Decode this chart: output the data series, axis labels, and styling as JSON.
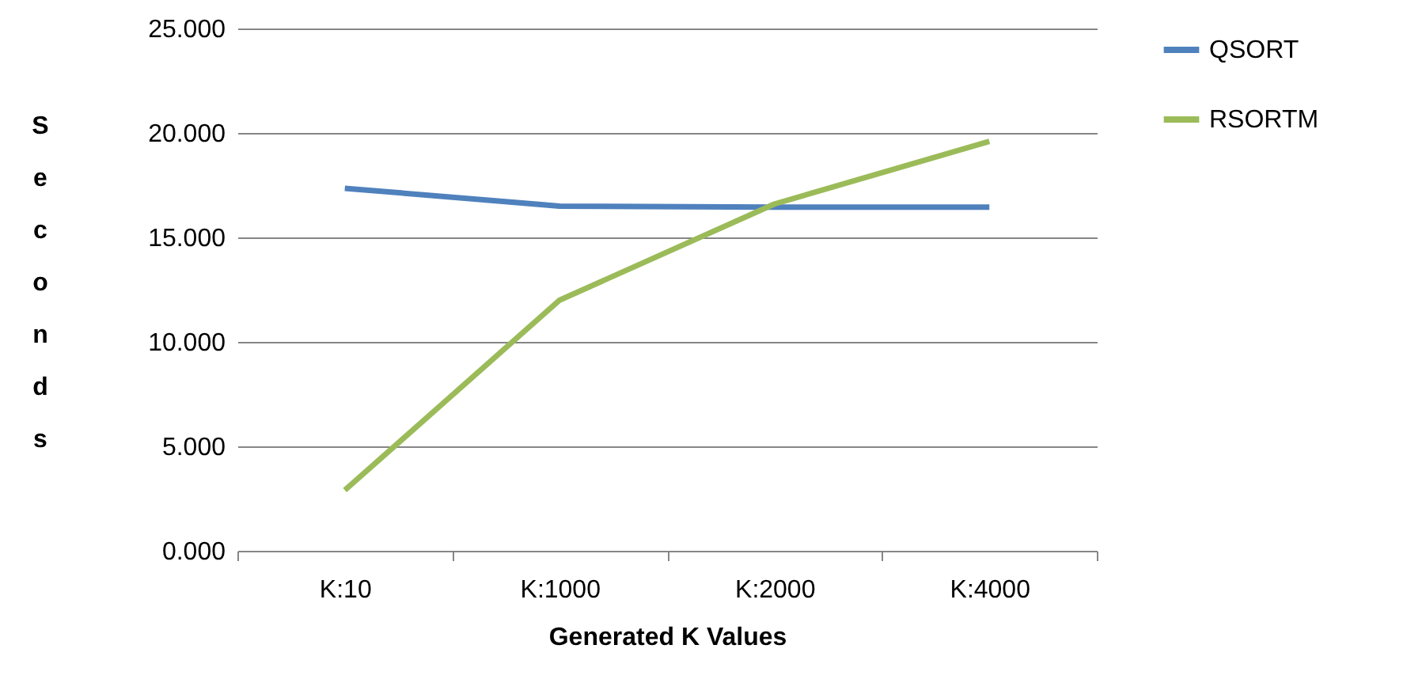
{
  "chart_data": {
    "type": "line",
    "xlabel": "Generated K Values",
    "ylabel": "Seconds",
    "categories": [
      "K:10",
      "K:1000",
      "K:2000",
      "K:4000"
    ],
    "series": [
      {
        "name": "QSORT",
        "color": "#4f81bd",
        "values": [
          17.35,
          16.5,
          16.45,
          16.45
        ]
      },
      {
        "name": "RSORTM",
        "color": "#9bbb59",
        "values": [
          2.9,
          12.0,
          16.6,
          19.6
        ]
      }
    ],
    "ylim": [
      0,
      25
    ],
    "yticks": [
      {
        "value": 0,
        "label": "0.000"
      },
      {
        "value": 5,
        "label": "5.000"
      },
      {
        "value": 10,
        "label": "10.000"
      },
      {
        "value": 15,
        "label": "15.000"
      },
      {
        "value": 20,
        "label": "20.000"
      },
      {
        "value": 25,
        "label": "25.000"
      }
    ],
    "grid": "y",
    "legend": "right",
    "marker": "none",
    "line_style": "solid"
  }
}
